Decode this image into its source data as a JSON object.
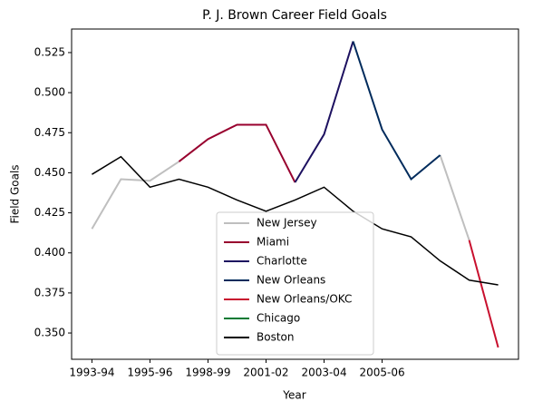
{
  "chart_data": {
    "type": "line",
    "title": "P. J. Brown Career Field Goals",
    "x_label": "Year",
    "y_label": "Field Goals",
    "categories": [
      "1993-94",
      null,
      "1995-96",
      null,
      "1998-99",
      null,
      "2001-02",
      null,
      "2003-04",
      null,
      "2005-06",
      null,
      null,
      null,
      null
    ],
    "series": [
      {
        "name": "New Jersey",
        "color": "#bfbfbf",
        "values": [
          0.415,
          0.446,
          0.445,
          0.457,
          null,
          null,
          null,
          null,
          null,
          null,
          null,
          null,
          0.461,
          0.408,
          null
        ]
      },
      {
        "name": "Miami",
        "color": "#98002e",
        "values": [
          null,
          null,
          null,
          0.457,
          0.471,
          0.48,
          0.48,
          0.444,
          null,
          null,
          null,
          null,
          null,
          null,
          null
        ]
      },
      {
        "name": "Charlotte",
        "color": "#1d1160",
        "values": [
          null,
          null,
          null,
          null,
          null,
          null,
          null,
          0.444,
          0.474,
          0.532,
          null,
          null,
          null,
          null,
          null
        ]
      },
      {
        "name": "New Orleans",
        "color": "#002b5c",
        "values": [
          null,
          null,
          null,
          null,
          null,
          null,
          null,
          null,
          null,
          0.532,
          0.477,
          0.446,
          0.461,
          null,
          null
        ]
      },
      {
        "name": "New Orleans/OKC",
        "color": "#c8102e",
        "values": [
          null,
          null,
          null,
          null,
          null,
          null,
          null,
          null,
          null,
          null,
          null,
          null,
          null,
          0.408,
          0.341
        ]
      },
      {
        "name": "Chicago",
        "color": "#007a33",
        "values": [
          null,
          null,
          null,
          null,
          null,
          null,
          null,
          null,
          null,
          null,
          null,
          null,
          null,
          null,
          null
        ]
      },
      {
        "name": "Boston",
        "color": "#000000",
        "values": [
          0.449,
          0.46,
          0.441,
          0.446,
          0.441,
          0.433,
          0.426,
          0.433,
          0.441,
          0.426,
          0.415,
          0.41,
          0.395,
          0.383,
          0.38
        ]
      }
    ],
    "ylim": [
      0.3336,
      0.5397
    ],
    "yticks": [
      {
        "value": 0.35,
        "label": "0.350"
      },
      0.375,
      {
        "value": 0.4,
        "label": "0.400"
      },
      0.425,
      {
        "value": 0.45,
        "label": "0.450"
      },
      0.475,
      {
        "value": 0.5,
        "label": "0.500"
      },
      0.525
    ],
    "legend": "lower center",
    "grid": false
  }
}
